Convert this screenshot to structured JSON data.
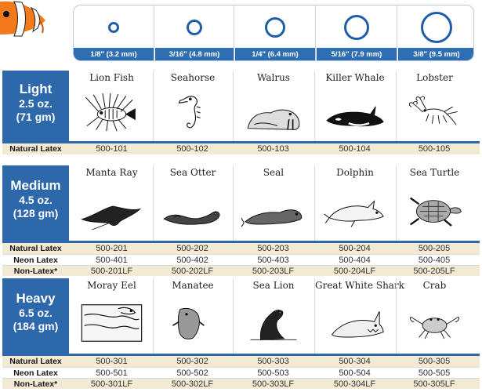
{
  "sizes": [
    {
      "label": "1/8\" (3.2 mm)"
    },
    {
      "label": "3/16\" (4.8 mm)"
    },
    {
      "label": "1/4\" (6.4 mm)"
    },
    {
      "label": "5/16\" (7.9 mm)"
    },
    {
      "label": "3/8\" (9.5 mm)"
    }
  ],
  "groups": [
    {
      "title": "Light",
      "weight": "2.5 oz.",
      "metric": "(71 gm)",
      "animals": [
        {
          "name": "Lion Fish",
          "icon": "lionfish-icon"
        },
        {
          "name": "Seahorse",
          "icon": "seahorse-icon"
        },
        {
          "name": "Walrus",
          "icon": "walrus-icon"
        },
        {
          "name": "Killer Whale",
          "icon": "orca-icon"
        },
        {
          "name": "Lobster",
          "icon": "lobster-icon"
        }
      ],
      "rows": [
        {
          "label": "Natural Latex",
          "codes": [
            "500-101",
            "500-102",
            "500-103",
            "500-104",
            "500-105"
          ]
        }
      ]
    },
    {
      "title": "Medium",
      "weight": "4.5 oz.",
      "metric": "(128 gm)",
      "animals": [
        {
          "name": "Manta Ray",
          "icon": "manta-ray-icon"
        },
        {
          "name": "Sea Otter",
          "icon": "sea-otter-icon"
        },
        {
          "name": "Seal",
          "icon": "seal-icon"
        },
        {
          "name": "Dolphin",
          "icon": "dolphin-icon"
        },
        {
          "name": "Sea Turtle",
          "icon": "sea-turtle-icon"
        }
      ],
      "rows": [
        {
          "label": "Natural Latex",
          "codes": [
            "500-201",
            "500-202",
            "500-203",
            "500-204",
            "500-205"
          ]
        },
        {
          "label": "Neon Latex",
          "codes": [
            "500-401",
            "500-402",
            "500-403",
            "500-404",
            "500-405"
          ]
        },
        {
          "label": "Non-Latex*",
          "codes": [
            "500-201LF",
            "500-202LF",
            "500-203LF",
            "500-204LF",
            "500-205LF"
          ]
        }
      ]
    },
    {
      "title": "Heavy",
      "weight": "6.5 oz.",
      "metric": "(184 gm)",
      "animals": [
        {
          "name": "Moray Eel",
          "icon": "moray-eel-icon"
        },
        {
          "name": "Manatee",
          "icon": "manatee-icon"
        },
        {
          "name": "Sea Lion",
          "icon": "sea-lion-icon"
        },
        {
          "name": "Great White Shark",
          "icon": "shark-icon"
        },
        {
          "name": "Crab",
          "icon": "crab-icon"
        }
      ],
      "rows": [
        {
          "label": "Natural Latex",
          "codes": [
            "500-301",
            "500-302",
            "500-303",
            "500-304",
            "500-305"
          ]
        },
        {
          "label": "Neon Latex",
          "codes": [
            "500-501",
            "500-502",
            "500-503",
            "500-504",
            "500-505"
          ]
        },
        {
          "label": "Non-Latex*",
          "codes": [
            "500-301LF",
            "500-302LF",
            "500-303LF",
            "500-304LF",
            "500-305LF"
          ]
        }
      ]
    }
  ],
  "colors": {
    "header_blue": "#2d68ab",
    "ring_blue": "#1f5da8",
    "row_shade": "#f3ead4"
  }
}
